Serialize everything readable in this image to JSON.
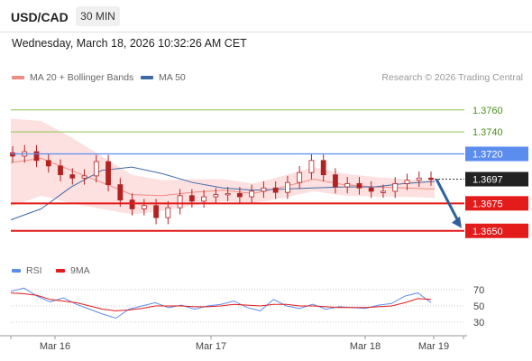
{
  "header": {
    "symbol": "USD/CAD",
    "timeframe": "30 MIN",
    "datetime": "Wednesday, March 18, 2026 10:32:26 AM CET"
  },
  "legend": {
    "ma20_label": "MA 20 + Bollinger Bands",
    "ma50_label": "MA 50",
    "credit": "Research © 2026 Trading Central",
    "rsi_label": "RSI",
    "ma9_label": "9MA"
  },
  "colors": {
    "ma20": "#f28b82",
    "band_fill": "#fde0e0",
    "ma50": "#3f6aa8",
    "candle": "#b22222",
    "resistance_green": "#8bc34a",
    "pivot_blue": "#5b8def",
    "support_red": "#e31b1b",
    "arrow": "#2f5fa0",
    "rsi": "#5b8def",
    "rsi_ma": "#e31b1b",
    "current_price_bg": "#222222"
  },
  "chart_data": [
    {
      "type": "candlestick",
      "title": "",
      "ylim": [
        1.3626,
        1.3782
      ],
      "x_ticks": [
        "Mar 16",
        "Mar 17",
        "Mar 18",
        "Mar 19"
      ],
      "series": [
        {
          "name": "MA 20 + Bollinger Bands",
          "values_mid": [
            1.3712,
            1.3716,
            1.3705,
            1.3694,
            1.3683,
            1.3682,
            1.3685,
            1.3687,
            1.3684,
            1.369,
            1.3697,
            1.3692,
            1.369,
            1.3689,
            1.3688
          ]
        },
        {
          "name": "MA 50",
          "values": [
            1.366,
            1.367,
            1.369,
            1.3705,
            1.3708,
            1.3702,
            1.3694,
            1.3689,
            1.3687,
            1.3688,
            1.3689,
            1.369,
            1.369,
            1.3693,
            1.3695
          ]
        }
      ],
      "levels": [
        {
          "value": "1.3760",
          "kind": "resistance"
        },
        {
          "value": "1.3740",
          "kind": "resistance"
        },
        {
          "value": "1.3720",
          "kind": "pivot"
        },
        {
          "value": "1.3697",
          "kind": "current"
        },
        {
          "value": "1.3675",
          "kind": "support"
        },
        {
          "value": "1.3650",
          "kind": "support"
        }
      ],
      "candles_close": [
        1.3718,
        1.3722,
        1.3714,
        1.3709,
        1.3701,
        1.3698,
        1.37,
        1.3713,
        1.3692,
        1.3678,
        1.367,
        1.3673,
        1.3662,
        1.3671,
        1.3682,
        1.3677,
        1.3681,
        1.3683,
        1.3684,
        1.3681,
        1.3686,
        1.3689,
        1.3685,
        1.3694,
        1.3703,
        1.3714,
        1.3701,
        1.369,
        1.3693,
        1.3689,
        1.3686,
        1.3686,
        1.3693,
        1.3696,
        1.3698,
        1.3697
      ],
      "forecast_arrow": {
        "from": 1.3697,
        "to": 1.365
      }
    },
    {
      "type": "line",
      "title": "",
      "ylim": [
        20,
        80
      ],
      "y_ticks": [
        "70",
        "50",
        "30"
      ],
      "series": [
        {
          "name": "RSI",
          "values": [
            68,
            72,
            62,
            55,
            60,
            52,
            46,
            40,
            35,
            46,
            50,
            54,
            48,
            51,
            46,
            50,
            52,
            56,
            48,
            44,
            58,
            50,
            47,
            52,
            46,
            49,
            48,
            47,
            51,
            53,
            62,
            66,
            54
          ]
        },
        {
          "name": "9MA",
          "values": [
            66,
            65,
            63,
            58,
            56,
            54,
            50,
            46,
            44,
            45,
            47,
            50,
            50,
            50,
            49,
            49,
            50,
            52,
            51,
            50,
            52,
            52,
            50,
            50,
            49,
            48,
            48,
            48,
            49,
            50,
            54,
            59,
            58
          ]
        }
      ]
    }
  ]
}
